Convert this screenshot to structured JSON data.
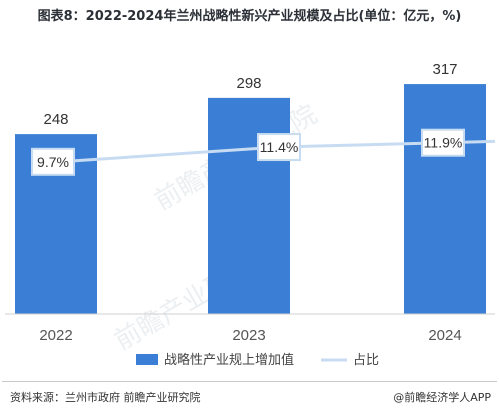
{
  "title": "图表8：2022-2024年兰州战略性新兴产业规模及占比(单位：亿元，%)",
  "chart_data": {
    "type": "bar",
    "categories": [
      "2022",
      "2023",
      "2024"
    ],
    "series": [
      {
        "name": "战略性产业规上增加值",
        "type": "bar",
        "values": [
          248,
          298,
          317
        ],
        "color": "#3a7fd5",
        "labels": [
          "248",
          "298",
          "317"
        ]
      },
      {
        "name": "占比",
        "type": "line",
        "values": [
          9.7,
          11.4,
          11.9
        ],
        "color": "#c7dcf2",
        "labels": [
          "9.7%",
          "11.4%",
          "11.9%"
        ]
      }
    ],
    "legend_position": "bottom",
    "grid": false
  },
  "watermark": "前瞻产业研究院",
  "footer": {
    "source": "资料来源：兰州市政府 前瞻产业研究院",
    "brand": "@前瞻经济学人APP"
  }
}
